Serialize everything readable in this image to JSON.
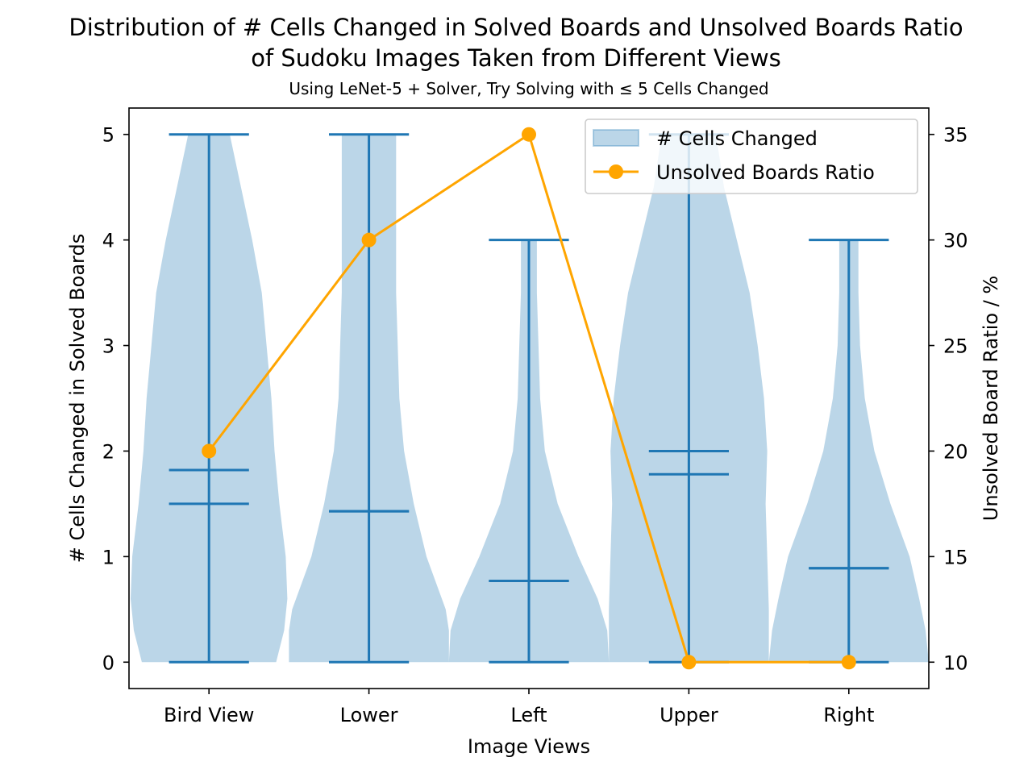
{
  "chart_data": {
    "type": "violin+line",
    "title_line1": "Distribution of # Cells Changed in Solved Boards and Unsolved Boards Ratio",
    "title_line2": "of Sudoku Images Taken from Different Views",
    "subtitle": "Using LeNet-5 + Solver, Try Solving with ≤ 5 Cells Changed",
    "xlabel": "Image Views",
    "ylabel_left": "# Cells Changed in Solved Boards",
    "ylabel_right": "Unsolved Board Ratio / %",
    "categories": [
      "Bird View",
      "Lower",
      "Left",
      "Upper",
      "Right"
    ],
    "ylim_left": [
      -0.25,
      5.25
    ],
    "yticks_left": [
      0,
      1,
      2,
      3,
      4,
      5
    ],
    "ylim_right": [
      8.75,
      36.25
    ],
    "yticks_right": [
      10,
      15,
      20,
      25,
      30,
      35
    ],
    "legend_position": "upper-right",
    "violin_series": {
      "name": "# Cells Changed",
      "color": "#1f77b4",
      "fill_color": "#1f77b4",
      "stats": [
        {
          "min": 0,
          "max": 5,
          "mean": 1.82,
          "median": 1.5,
          "density": [
            [
              0,
              0.42
            ],
            [
              0.3,
              0.47
            ],
            [
              0.6,
              0.49
            ],
            [
              1.0,
              0.48
            ],
            [
              1.5,
              0.44
            ],
            [
              2.0,
              0.41
            ],
            [
              2.5,
              0.39
            ],
            [
              3.0,
              0.36
            ],
            [
              3.5,
              0.33
            ],
            [
              4.0,
              0.27
            ],
            [
              4.5,
              0.2
            ],
            [
              5.0,
              0.13
            ]
          ]
        },
        {
          "min": 0,
          "max": 5,
          "mean": 1.43,
          "median": 1.43,
          "density": [
            [
              0,
              0.5
            ],
            [
              0.3,
              0.5
            ],
            [
              0.5,
              0.48
            ],
            [
              1.0,
              0.36
            ],
            [
              1.5,
              0.28
            ],
            [
              2.0,
              0.22
            ],
            [
              2.5,
              0.19
            ],
            [
              3.0,
              0.18
            ],
            [
              3.5,
              0.17
            ],
            [
              4.0,
              0.17
            ],
            [
              4.5,
              0.17
            ],
            [
              5.0,
              0.17
            ]
          ]
        },
        {
          "min": 0,
          "max": 4,
          "mean": 0.77,
          "median": 0.77,
          "density": [
            [
              0,
              0.5
            ],
            [
              0.3,
              0.49
            ],
            [
              0.6,
              0.43
            ],
            [
              1.0,
              0.31
            ],
            [
              1.5,
              0.18
            ],
            [
              2.0,
              0.1
            ],
            [
              2.5,
              0.07
            ],
            [
              3.0,
              0.06
            ],
            [
              3.5,
              0.05
            ],
            [
              4.0,
              0.05
            ]
          ]
        },
        {
          "min": 0,
          "max": 5,
          "mean": 1.78,
          "median": 2.0,
          "density": [
            [
              0,
              0.5
            ],
            [
              0.5,
              0.5
            ],
            [
              1.0,
              0.49
            ],
            [
              1.5,
              0.48
            ],
            [
              2.0,
              0.49
            ],
            [
              2.5,
              0.47
            ],
            [
              3.0,
              0.43
            ],
            [
              3.5,
              0.38
            ],
            [
              4.0,
              0.3
            ],
            [
              4.5,
              0.22
            ],
            [
              5.0,
              0.17
            ]
          ]
        },
        {
          "min": 0,
          "max": 4,
          "mean": 0.89,
          "median": 0.89,
          "density": [
            [
              0,
              0.5
            ],
            [
              0.3,
              0.48
            ],
            [
              0.6,
              0.44
            ],
            [
              1.0,
              0.38
            ],
            [
              1.5,
              0.26
            ],
            [
              2.0,
              0.16
            ],
            [
              2.5,
              0.1
            ],
            [
              3.0,
              0.07
            ],
            [
              3.5,
              0.06
            ],
            [
              4.0,
              0.06
            ]
          ]
        }
      ]
    },
    "line_series": {
      "name": "Unsolved Boards Ratio",
      "color": "#ffa500",
      "values": [
        20,
        30,
        35,
        10,
        10
      ]
    }
  }
}
